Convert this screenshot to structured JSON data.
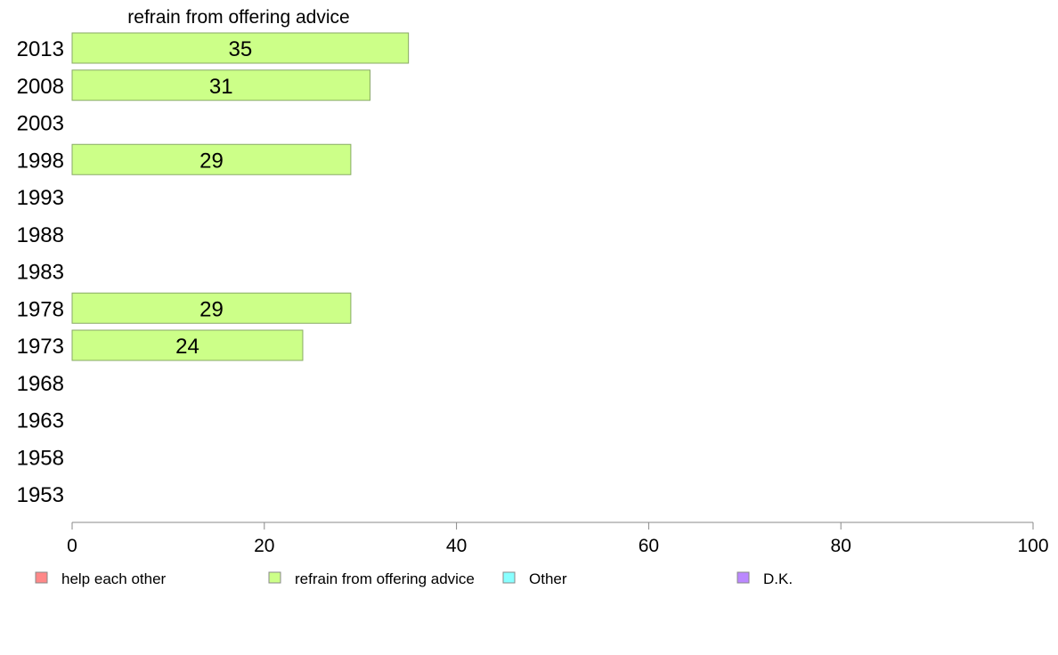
{
  "chart_data": {
    "type": "bar",
    "orientation": "horizontal",
    "title": "refrain from offering advice",
    "categories": [
      "2013",
      "2008",
      "2003",
      "1998",
      "1993",
      "1988",
      "1983",
      "1978",
      "1973",
      "1968",
      "1963",
      "1958",
      "1953"
    ],
    "series": [
      {
        "name": "refrain from offering advice",
        "color": "#ccff88",
        "values": [
          35,
          31,
          null,
          29,
          null,
          null,
          null,
          29,
          24,
          null,
          null,
          null,
          null
        ],
        "labels": [
          "35",
          "31",
          "",
          "29",
          "",
          "",
          "",
          "29",
          "24",
          "",
          "",
          "",
          ""
        ]
      }
    ],
    "xlim": [
      0,
      100
    ],
    "xticks": [
      0,
      20,
      40,
      60,
      80,
      100
    ],
    "xtick_labels": [
      "0",
      "20",
      "40",
      "60",
      "80",
      "100"
    ],
    "grid": false,
    "legend_position": "bottom",
    "legend": [
      {
        "label": "help each other",
        "color": "#ff8888"
      },
      {
        "label": "refrain from offering advice",
        "color": "#ccff88"
      },
      {
        "label": "Other",
        "color": "#88ffff"
      },
      {
        "label": "D.K.",
        "color": "#bb88ff"
      }
    ]
  }
}
